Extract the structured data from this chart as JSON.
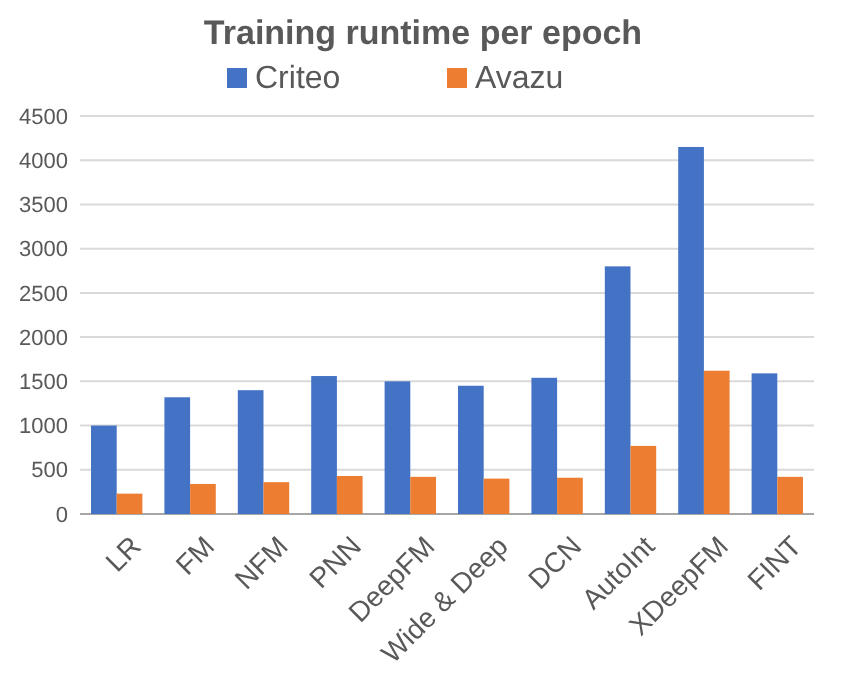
{
  "chart_data": {
    "type": "bar",
    "title": "Training runtime per epoch",
    "categories": [
      "LR",
      "FM",
      "NFM",
      "PNN",
      "DeepFM",
      "Wide & Deep",
      "DCN",
      "AutoInt",
      "XDeepFM",
      "FINT"
    ],
    "series": [
      {
        "name": "Criteo",
        "color": "#4472c4",
        "values": [
          1000,
          1320,
          1400,
          1560,
          1500,
          1450,
          1540,
          2800,
          4150,
          1590
        ]
      },
      {
        "name": "Avazu",
        "color": "#ed7d31",
        "values": [
          230,
          340,
          360,
          430,
          420,
          400,
          410,
          770,
          1620,
          420
        ]
      }
    ],
    "ylim": [
      0,
      4500
    ],
    "yticks": [
      0,
      500,
      1000,
      1500,
      2000,
      2500,
      3000,
      3500,
      4000,
      4500
    ],
    "grid": "y",
    "legend": "top"
  }
}
